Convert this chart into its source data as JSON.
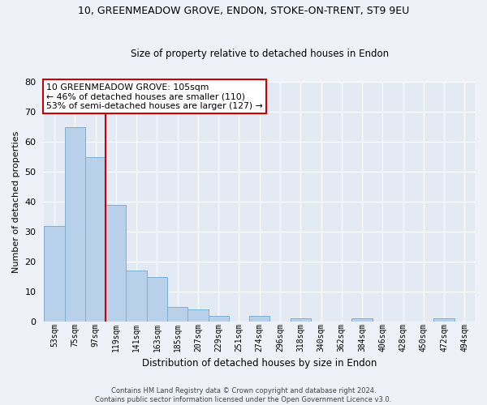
{
  "title": "10, GREENMEADOW GROVE, ENDON, STOKE-ON-TRENT, ST9 9EU",
  "subtitle": "Size of property relative to detached houses in Endon",
  "xlabel": "Distribution of detached houses by size in Endon",
  "ylabel": "Number of detached properties",
  "bar_labels": [
    "53sqm",
    "75sqm",
    "97sqm",
    "119sqm",
    "141sqm",
    "163sqm",
    "185sqm",
    "207sqm",
    "229sqm",
    "251sqm",
    "274sqm",
    "296sqm",
    "318sqm",
    "340sqm",
    "362sqm",
    "384sqm",
    "406sqm",
    "428sqm",
    "450sqm",
    "472sqm",
    "494sqm"
  ],
  "bar_values": [
    32,
    65,
    55,
    39,
    17,
    15,
    5,
    4,
    2,
    0,
    2,
    0,
    1,
    0,
    0,
    1,
    0,
    0,
    0,
    1,
    0
  ],
  "bar_color": "#b8d0ea",
  "bar_edge_color": "#7bafd4",
  "vline_color": "#cc0000",
  "annotation_line1": "10 GREENMEADOW GROVE: 105sqm",
  "annotation_line2": "← 46% of detached houses are smaller (110)",
  "annotation_line3": "53% of semi-detached houses are larger (127) →",
  "annotation_box_color": "#ffffff",
  "annotation_box_edge": "#cc0000",
  "ylim": [
    0,
    80
  ],
  "yticks": [
    0,
    10,
    20,
    30,
    40,
    50,
    60,
    70,
    80
  ],
  "footer_line1": "Contains HM Land Registry data © Crown copyright and database right 2024.",
  "footer_line2": "Contains public sector information licensed under the Open Government Licence v3.0.",
  "bg_color": "#eef2f8",
  "plot_bg_color": "#e4eaf4",
  "grid_color": "#ffffff"
}
